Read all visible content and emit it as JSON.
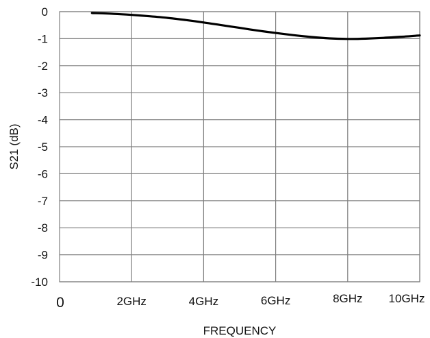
{
  "chart_data": {
    "type": "line",
    "title": "",
    "xlabel": "FREQUENCY",
    "ylabel": "S21 (dB)",
    "xlim": [
      0,
      10
    ],
    "ylim": [
      -10,
      0
    ],
    "grid": true,
    "legend": "none",
    "x_origin_label": "0",
    "x_ticks": [
      {
        "value": 2,
        "label": "2GHz"
      },
      {
        "value": 4,
        "label": "4GHz"
      },
      {
        "value": 6,
        "label": "6GHz"
      },
      {
        "value": 8,
        "label": "8GHz"
      },
      {
        "value": 10,
        "label": "10GHz"
      }
    ],
    "y_ticks": [
      {
        "value": 0,
        "label": "0"
      },
      {
        "value": -1,
        "label": "-1"
      },
      {
        "value": -2,
        "label": "-2"
      },
      {
        "value": -3,
        "label": "-3"
      },
      {
        "value": -4,
        "label": "-4"
      },
      {
        "value": -5,
        "label": "-5"
      },
      {
        "value": -6,
        "label": "-6"
      },
      {
        "value": -7,
        "label": "-7"
      },
      {
        "value": -8,
        "label": "-8"
      },
      {
        "value": -9,
        "label": "-9"
      },
      {
        "value": -10,
        "label": "-10"
      }
    ],
    "series": [
      {
        "color": "#000000",
        "x": [
          0.9,
          1.5,
          2.0,
          2.5,
          3.0,
          3.5,
          4.0,
          4.5,
          5.0,
          5.5,
          6.0,
          6.5,
          7.0,
          7.5,
          8.0,
          8.5,
          9.0,
          9.5,
          10.0
        ],
        "y": [
          -0.05,
          -0.08,
          -0.12,
          -0.17,
          -0.23,
          -0.31,
          -0.4,
          -0.5,
          -0.6,
          -0.7,
          -0.79,
          -0.87,
          -0.94,
          -0.99,
          -1.01,
          -1.0,
          -0.97,
          -0.93,
          -0.88
        ]
      }
    ]
  }
}
